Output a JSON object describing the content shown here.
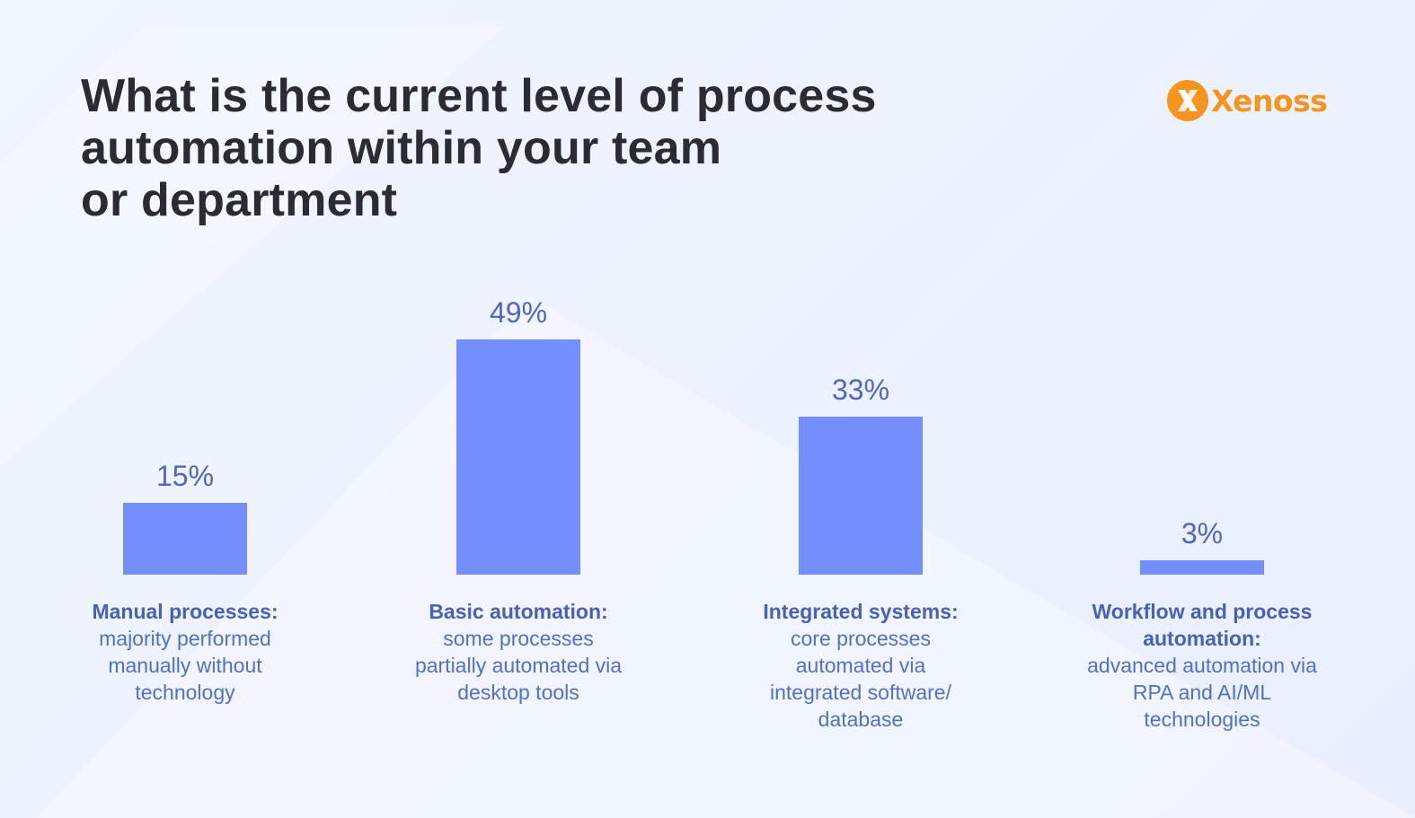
{
  "title_lines": [
    "What is the current level of process",
    "automation within your team",
    "or department"
  ],
  "logo": {
    "text": "Xenoss",
    "icon": "xenoss-logo-icon",
    "color": "#f7941d"
  },
  "colors": {
    "bar": "#738ffd",
    "value_text": "#4f66c4",
    "label_text": "#5270c8",
    "title": "#2b2b33"
  },
  "chart_data": {
    "type": "bar",
    "title": "What is the current level of process automation within your team or department",
    "categories": [
      {
        "head": "Manual processes:",
        "desc": "majority performed manually without technology"
      },
      {
        "head": "Basic automation:",
        "desc": "some processes partially automated via desktop tools"
      },
      {
        "head": "Integrated systems:",
        "desc": "core processes automated via integrated software/ database"
      },
      {
        "head": "Workflow and process automation:",
        "desc": "advanced automation via RPA and AI/ML technologies"
      }
    ],
    "values": [
      15,
      49,
      33,
      3
    ],
    "value_labels": [
      "15%",
      "49%",
      "33%",
      "3%"
    ],
    "unit": "%",
    "ylim": [
      0,
      49
    ],
    "grid": false,
    "legend": "none"
  }
}
